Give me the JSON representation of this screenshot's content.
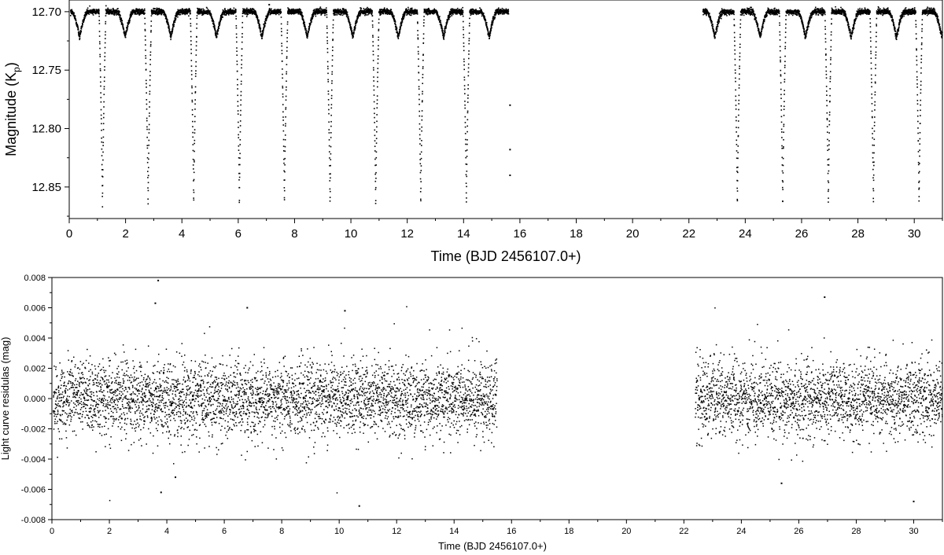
{
  "chart_data": [
    {
      "type": "scatter",
      "xlabel": "Time (BJD 2456107.0+)",
      "ylabel": "Magnitude (K",
      "ylabel_subscript": "p",
      "ylabel_close": ")",
      "xlim": [
        0,
        31
      ],
      "ylim": [
        12.69,
        12.877
      ],
      "y_inverted": true,
      "x_ticks": [
        0,
        2,
        4,
        6,
        8,
        10,
        12,
        14,
        16,
        18,
        20,
        22,
        24,
        26,
        28,
        30
      ],
      "y_ticks": [
        12.7,
        12.75,
        12.8,
        12.85
      ],
      "y_tick_labels": [
        "12.70",
        "12.75",
        "12.80",
        "12.85"
      ],
      "marker_color": "#000000",
      "observation_segments": [
        [
          0.05,
          15.6
        ],
        [
          22.5,
          31.0
        ]
      ],
      "baseline_mag": 12.7,
      "primary_eclipses": {
        "times": [
          1.18,
          2.8,
          4.42,
          6.04,
          7.64,
          9.26,
          10.88,
          12.48,
          14.1,
          23.72,
          25.33,
          26.95,
          28.55,
          30.17
        ],
        "depth_mag": 12.868
      },
      "secondary_eclipses": {
        "times": [
          0.37,
          1.99,
          3.61,
          5.23,
          6.84,
          8.45,
          10.07,
          11.68,
          13.29,
          14.91,
          22.92,
          24.53,
          26.14,
          27.76,
          29.37,
          30.98
        ],
        "depth_mag": 12.722
      },
      "isolated_points": [
        [
          7.1,
          12.694
        ],
        [
          15.65,
          12.78
        ],
        [
          15.65,
          12.818
        ],
        [
          15.65,
          12.84
        ]
      ]
    },
    {
      "type": "scatter",
      "xlabel": "Time (BJD 2456107.0+)",
      "ylabel": "Light curve residulas (mag)",
      "xlim": [
        0,
        31
      ],
      "ylim": [
        -0.008,
        0.008
      ],
      "x_ticks": [
        0,
        2,
        4,
        6,
        8,
        10,
        12,
        14,
        16,
        18,
        20,
        22,
        24,
        26,
        28,
        30
      ],
      "y_ticks": [
        -0.008,
        -0.006,
        -0.004,
        -0.002,
        0.0,
        0.002,
        0.004,
        0.006,
        0.008
      ],
      "y_tick_labels": [
        "-0.008",
        "-0.006",
        "-0.004",
        "-0.002",
        "0.000",
        "0.002",
        "0.004",
        "0.006",
        "0.008"
      ],
      "marker_color": "#000000",
      "observation_segments": [
        [
          0.05,
          15.5
        ],
        [
          22.4,
          31.0
        ]
      ],
      "residual_scatter_1sigma_mag": 0.0012,
      "outlier_points": [
        [
          3.7,
          0.0078
        ],
        [
          3.6,
          0.0063
        ],
        [
          3.8,
          -0.0062
        ],
        [
          10.7,
          -0.0071
        ],
        [
          26.9,
          0.0067
        ],
        [
          30.0,
          -0.0068
        ],
        [
          25.4,
          -0.0056
        ],
        [
          10.2,
          0.0058
        ],
        [
          6.8,
          0.006
        ],
        [
          4.3,
          -0.0052
        ]
      ]
    }
  ]
}
